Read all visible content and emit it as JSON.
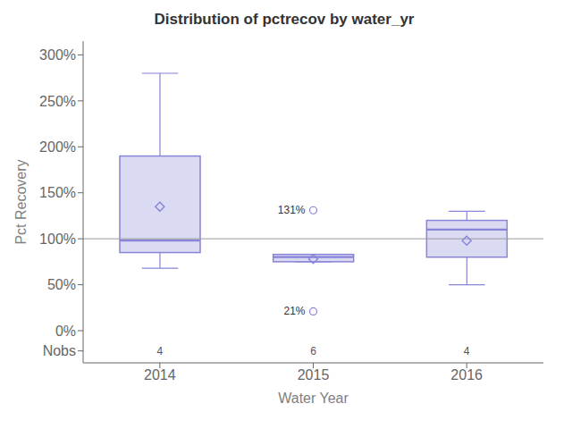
{
  "chart_data": {
    "type": "box",
    "title": "Distribution of pctrecov by water_yr",
    "xlabel": "Water Year",
    "ylabel": "Pct Recovery",
    "categories": [
      "2014",
      "2015",
      "2016"
    ],
    "boxes": [
      {
        "whislo": 68,
        "q1": 85,
        "med": 98,
        "q3": 190,
        "whishi": 280,
        "mean": 135,
        "fliers": []
      },
      {
        "whislo": 75,
        "q1": 75,
        "med": 80,
        "q3": 83,
        "whishi": 83,
        "mean": 78,
        "fliers": [
          21,
          131
        ]
      },
      {
        "whislo": 50,
        "q1": 80,
        "med": 110,
        "q3": 120,
        "whishi": 130,
        "mean": 98,
        "fliers": []
      }
    ],
    "nobs": {
      "y": -22,
      "values": [
        4,
        6,
        4
      ]
    },
    "annotations": [
      {
        "x": "2015",
        "y": 131,
        "text": "131%"
      },
      {
        "x": "2015",
        "y": 21,
        "text": "21%"
      }
    ],
    "reference_line": 100,
    "ylim": [
      -35,
      315
    ],
    "yticks": [
      {
        "value": -22,
        "label": "Nobs"
      },
      {
        "value": 0,
        "label": "0%"
      },
      {
        "value": 50,
        "label": "50%"
      },
      {
        "value": 100,
        "label": "100%"
      },
      {
        "value": 150,
        "label": "150%"
      },
      {
        "value": 200,
        "label": "200%"
      },
      {
        "value": 250,
        "label": "250%"
      },
      {
        "value": 300,
        "label": "300%"
      }
    ],
    "color": "#8884d8",
    "grid": false
  }
}
